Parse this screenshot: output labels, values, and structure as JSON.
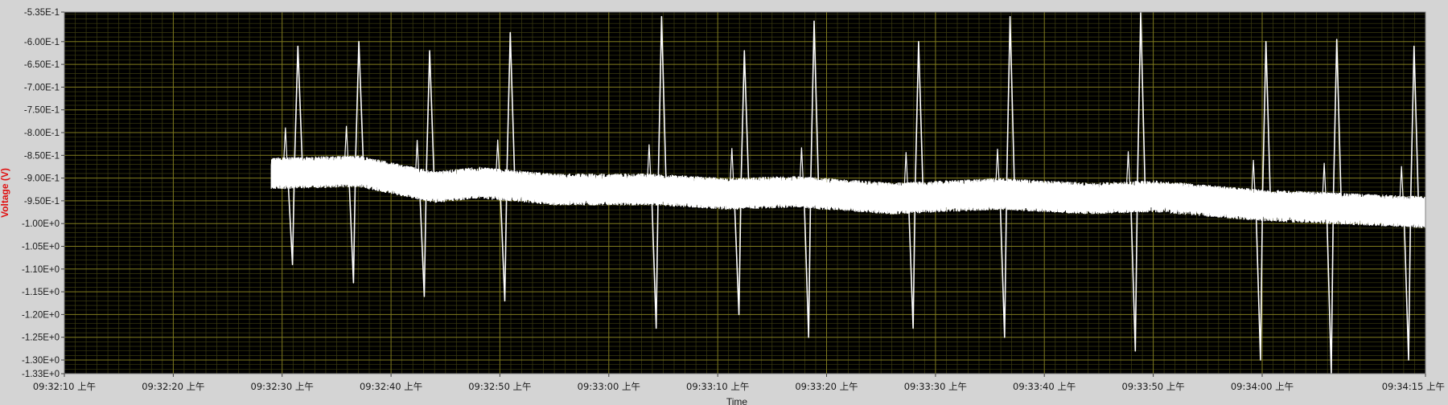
{
  "chart_data": {
    "type": "line",
    "title": "",
    "xlabel": "Time",
    "ylabel": "Voltage (V)",
    "grid": true,
    "xlim": [
      "09:32:10",
      "09:34:15"
    ],
    "ylim": [
      -1.33,
      -0.535
    ],
    "y_ticks": [
      {
        "value": -0.535,
        "label": "-5.35E-1"
      },
      {
        "value": -0.6,
        "label": "-6.00E-1"
      },
      {
        "value": -0.65,
        "label": "-6.50E-1"
      },
      {
        "value": -0.7,
        "label": "-7.00E-1"
      },
      {
        "value": -0.75,
        "label": "-7.50E-1"
      },
      {
        "value": -0.8,
        "label": "-8.00E-1"
      },
      {
        "value": -0.85,
        "label": "-8.50E-1"
      },
      {
        "value": -0.9,
        "label": "-9.00E-1"
      },
      {
        "value": -0.95,
        "label": "-9.50E-1"
      },
      {
        "value": -1.0,
        "label": "-1.00E+0"
      },
      {
        "value": -1.05,
        "label": "-1.05E+0"
      },
      {
        "value": -1.1,
        "label": "-1.10E+0"
      },
      {
        "value": -1.15,
        "label": "-1.15E+0"
      },
      {
        "value": -1.2,
        "label": "-1.20E+0"
      },
      {
        "value": -1.25,
        "label": "-1.25E+0"
      },
      {
        "value": -1.3,
        "label": "-1.30E+0"
      },
      {
        "value": -1.33,
        "label": "-1.33E+0"
      }
    ],
    "x_ticks": [
      {
        "time": "09:32:10",
        "label": "09:32:10 上午"
      },
      {
        "time": "09:32:20",
        "label": "09:32:20 上午"
      },
      {
        "time": "09:32:30",
        "label": "09:32:30 上午"
      },
      {
        "time": "09:32:40",
        "label": "09:32:40 上午"
      },
      {
        "time": "09:32:50",
        "label": "09:32:50 上午"
      },
      {
        "time": "09:33:00",
        "label": "09:33:00 上午"
      },
      {
        "time": "09:33:10",
        "label": "09:33:10 上午"
      },
      {
        "time": "09:33:20",
        "label": "09:33:20 上午"
      },
      {
        "time": "09:33:30",
        "label": "09:33:30 上午"
      },
      {
        "time": "09:33:40",
        "label": "09:33:40 上午"
      },
      {
        "time": "09:33:50",
        "label": "09:33:50 上午"
      },
      {
        "time": "09:34:00",
        "label": "09:34:00 上午"
      },
      {
        "time": "09:34:15",
        "label": "09:34:15 上午"
      }
    ],
    "series": [
      {
        "color": "#ffffff",
        "start": "09:32:29.0",
        "end": "09:34:15",
        "baseline": [
          {
            "time": "09:32:29.0",
            "value": -0.89
          },
          {
            "time": "09:32:37.0",
            "value": -0.885
          },
          {
            "time": "09:32:44.0",
            "value": -0.92
          },
          {
            "time": "09:32:48.0",
            "value": -0.91
          },
          {
            "time": "09:32:55.0",
            "value": -0.925
          },
          {
            "time": "09:33:04.0",
            "value": -0.925
          },
          {
            "time": "09:33:11.0",
            "value": -0.935
          },
          {
            "time": "09:33:17.0",
            "value": -0.93
          },
          {
            "time": "09:33:26.0",
            "value": -0.945
          },
          {
            "time": "09:33:36.0",
            "value": -0.935
          },
          {
            "time": "09:33:44.0",
            "value": -0.945
          },
          {
            "time": "09:33:50.0",
            "value": -0.94
          },
          {
            "time": "09:34:00.0",
            "value": -0.96
          },
          {
            "time": "09:34:05.0",
            "value": -0.965
          },
          {
            "time": "09:34:15.0",
            "value": -0.975
          }
        ],
        "noise_amplitude": 0.035,
        "spikes": [
          {
            "time": "09:32:31.1",
            "min": -1.09,
            "max": -0.61
          },
          {
            "time": "09:32:36.7",
            "min": -1.13,
            "max": -0.6
          },
          {
            "time": "09:32:43.2",
            "min": -1.16,
            "max": -0.62
          },
          {
            "time": "09:32:50.6",
            "min": -1.17,
            "max": -0.58
          },
          {
            "time": "09:33:04.5",
            "min": -1.23,
            "max": -0.545
          },
          {
            "time": "09:33:12.1",
            "min": -1.2,
            "max": -0.62
          },
          {
            "time": "09:33:18.5",
            "min": -1.25,
            "max": -0.555
          },
          {
            "time": "09:33:28.1",
            "min": -1.23,
            "max": -0.6
          },
          {
            "time": "09:33:36.5",
            "min": -1.25,
            "max": -0.545
          },
          {
            "time": "09:33:48.5",
            "min": -1.28,
            "max": -0.535
          },
          {
            "time": "09:34:00.0",
            "min": -1.3,
            "max": -0.6
          },
          {
            "time": "09:34:06.5",
            "min": -1.33,
            "max": -0.595
          },
          {
            "time": "09:34:13.6",
            "min": -1.3,
            "max": -0.61
          }
        ]
      }
    ]
  }
}
